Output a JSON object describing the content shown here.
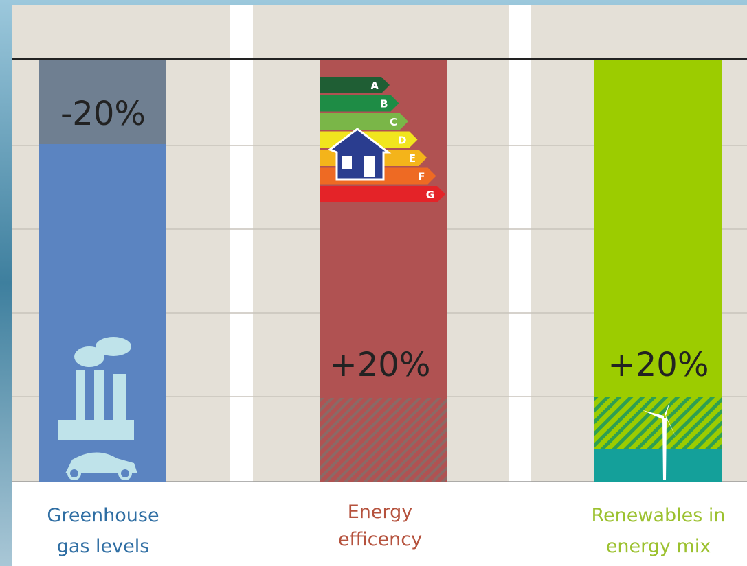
{
  "columns": [
    {
      "target": "-20%",
      "label": [
        "Greenhouse",
        "gas levels"
      ]
    },
    {
      "target": "+20%",
      "label": [
        "Energy",
        "efficency"
      ]
    },
    {
      "target": "+20%",
      "label": [
        "Renewables in",
        "energy mix"
      ]
    }
  ],
  "energy_classes": [
    "A",
    "B",
    "C",
    "D",
    "E",
    "F",
    "G"
  ]
}
